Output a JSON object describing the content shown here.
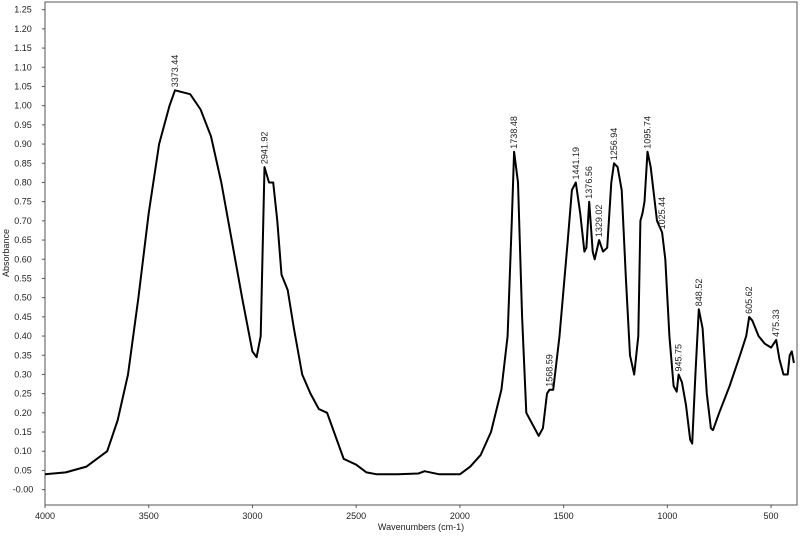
{
  "chart_data": {
    "type": "line",
    "x_label": "Wavenumbers (cm-1)",
    "y_label": "Absorbance",
    "color": "#000000",
    "xlim": [
      4000,
      375
    ],
    "ylim": [
      -0.04,
      1.27
    ],
    "xticks": [
      4000,
      3500,
      3000,
      2500,
      2000,
      1500,
      1000,
      500
    ],
    "yticks": [
      {
        "value": 0,
        "label": "-0.00"
      },
      {
        "value": 0.05,
        "label": "0.05"
      },
      {
        "value": 0.1,
        "label": "0.10"
      },
      {
        "value": 0.15,
        "label": "0.15"
      },
      {
        "value": 0.2,
        "label": "0.20"
      },
      {
        "value": 0.25,
        "label": "0.25"
      },
      {
        "value": 0.3,
        "label": "0.30"
      },
      {
        "value": 0.35,
        "label": "0.35"
      },
      {
        "value": 0.4,
        "label": "0.40"
      },
      {
        "value": 0.45,
        "label": "0.45"
      },
      {
        "value": 0.5,
        "label": "0.50"
      },
      {
        "value": 0.55,
        "label": "0.55"
      },
      {
        "value": 0.6,
        "label": "0.60"
      },
      {
        "value": 0.65,
        "label": "0.65"
      },
      {
        "value": 0.7,
        "label": "0.70"
      },
      {
        "value": 0.75,
        "label": "0.75"
      },
      {
        "value": 0.8,
        "label": "0.80"
      },
      {
        "value": 0.85,
        "label": "0.85"
      },
      {
        "value": 0.9,
        "label": "0.90"
      },
      {
        "value": 0.95,
        "label": "0.95"
      },
      {
        "value": 1,
        "label": "1.00"
      },
      {
        "value": 1.05,
        "label": "1.05"
      },
      {
        "value": 1.1,
        "label": "1.10"
      },
      {
        "value": 1.15,
        "label": "1.15"
      },
      {
        "value": 1.2,
        "label": "1.20"
      },
      {
        "value": 1.25,
        "label": "1.25"
      }
    ],
    "x": [
      4000,
      3900,
      3800,
      3700,
      3650,
      3600,
      3550,
      3500,
      3450,
      3400,
      3373.44,
      3300,
      3250,
      3200,
      3150,
      3100,
      3050,
      3000,
      2980,
      2960,
      2941.92,
      2920,
      2900,
      2880,
      2860,
      2830,
      2800,
      2760,
      2720,
      2680,
      2640,
      2600,
      2560,
      2500,
      2450,
      2400,
      2300,
      2200,
      2170,
      2100,
      2000,
      1950,
      1900,
      1850,
      1800,
      1770,
      1750,
      1738.48,
      1720,
      1700,
      1680,
      1650,
      1620,
      1600,
      1580,
      1568.59,
      1550,
      1520,
      1480,
      1460,
      1441.19,
      1420,
      1400,
      1390,
      1376.56,
      1360,
      1350,
      1329.02,
      1310,
      1290,
      1270,
      1256.94,
      1240,
      1220,
      1200,
      1180,
      1160,
      1140,
      1130,
      1120,
      1110,
      1095.74,
      1080,
      1050,
      1025.44,
      1010,
      990,
      970,
      955,
      945.75,
      930,
      910,
      890,
      880,
      865,
      848.52,
      830,
      810,
      790,
      780,
      750,
      700,
      650,
      620,
      605.62,
      590,
      560,
      530,
      500,
      475.33,
      460,
      440,
      420,
      410,
      400,
      390
    ],
    "values": [
      0.04,
      0.045,
      0.06,
      0.1,
      0.18,
      0.3,
      0.5,
      0.72,
      0.9,
      1.0,
      1.04,
      1.03,
      0.99,
      0.92,
      0.8,
      0.65,
      0.5,
      0.36,
      0.345,
      0.4,
      0.84,
      0.8,
      0.8,
      0.7,
      0.56,
      0.52,
      0.42,
      0.3,
      0.25,
      0.21,
      0.2,
      0.14,
      0.08,
      0.065,
      0.045,
      0.04,
      0.04,
      0.042,
      0.048,
      0.04,
      0.04,
      0.06,
      0.09,
      0.15,
      0.26,
      0.4,
      0.7,
      0.88,
      0.8,
      0.45,
      0.2,
      0.17,
      0.14,
      0.16,
      0.25,
      0.26,
      0.26,
      0.4,
      0.65,
      0.78,
      0.8,
      0.72,
      0.62,
      0.63,
      0.75,
      0.62,
      0.6,
      0.65,
      0.62,
      0.63,
      0.8,
      0.85,
      0.84,
      0.78,
      0.55,
      0.35,
      0.3,
      0.4,
      0.7,
      0.72,
      0.75,
      0.88,
      0.84,
      0.7,
      0.67,
      0.6,
      0.4,
      0.27,
      0.255,
      0.3,
      0.28,
      0.22,
      0.13,
      0.12,
      0.3,
      0.47,
      0.42,
      0.25,
      0.16,
      0.155,
      0.2,
      0.27,
      0.35,
      0.4,
      0.45,
      0.44,
      0.4,
      0.38,
      0.37,
      0.39,
      0.34,
      0.3,
      0.3,
      0.35,
      0.36,
      0.33
    ],
    "annotations": [
      {
        "label": "3373.44",
        "x": 3373.44,
        "y": 1.04
      },
      {
        "label": "2941.92",
        "x": 2941.92,
        "y": 0.84
      },
      {
        "label": "1738.48",
        "x": 1738.48,
        "y": 0.88
      },
      {
        "label": "1568.59",
        "x": 1568.59,
        "y": 0.26
      },
      {
        "label": "1441.19",
        "x": 1441.19,
        "y": 0.8
      },
      {
        "label": "1376.56",
        "x": 1376.56,
        "y": 0.75
      },
      {
        "label": "1329.02",
        "x": 1329.02,
        "y": 0.65
      },
      {
        "label": "1256.94",
        "x": 1256.94,
        "y": 0.85
      },
      {
        "label": "1095.74",
        "x": 1095.74,
        "y": 0.88
      },
      {
        "label": "1025.44",
        "x": 1025.44,
        "y": 0.67
      },
      {
        "label": "945.75",
        "x": 945.75,
        "y": 0.3
      },
      {
        "label": "848.52",
        "x": 848.52,
        "y": 0.47
      },
      {
        "label": "605.62",
        "x": 605.62,
        "y": 0.45
      },
      {
        "label": "475.33",
        "x": 475.33,
        "y": 0.39
      }
    ]
  }
}
